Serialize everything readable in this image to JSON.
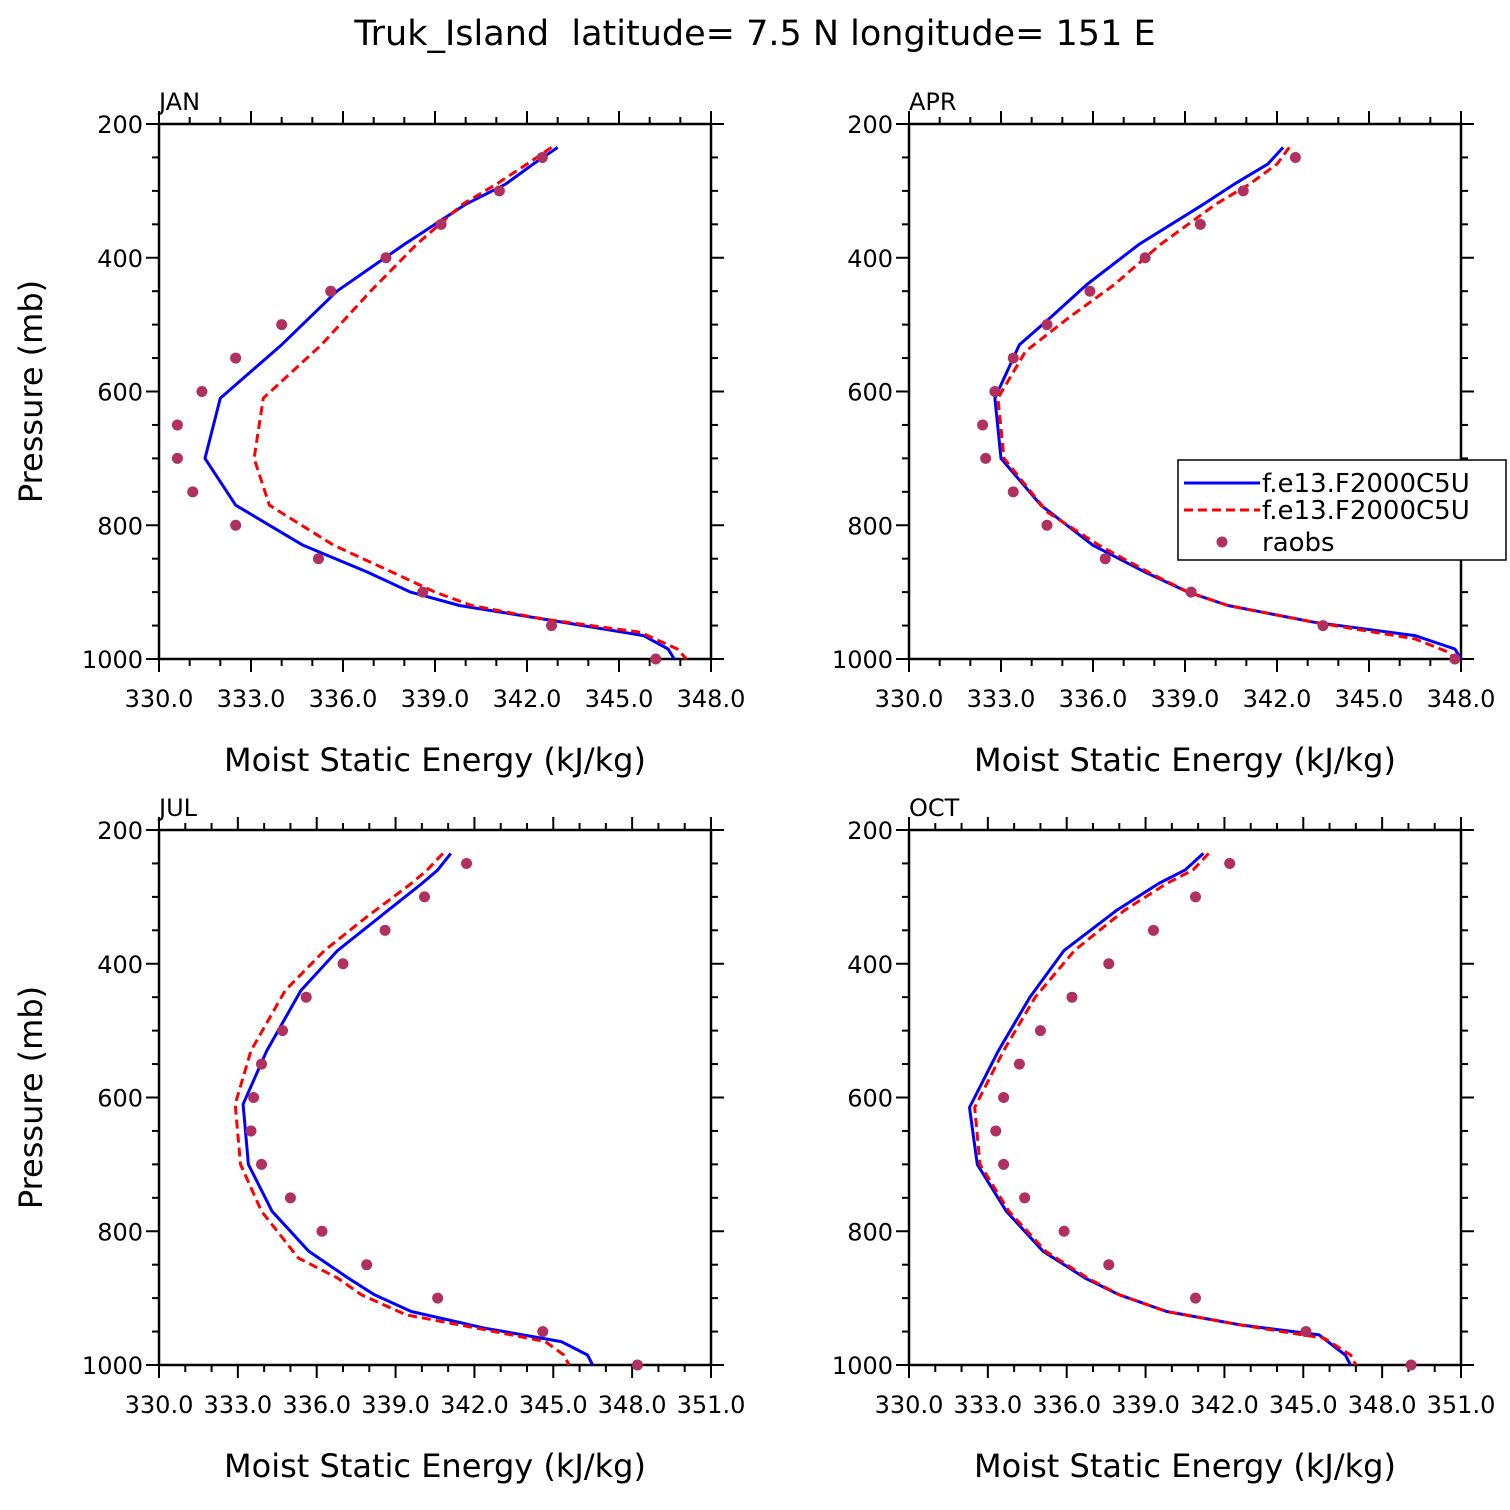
{
  "title": "Truk_Island  latitude= 7.5 N longitude= 151 E",
  "legend_labels": [
    "f.e13.F2000C5U",
    "f.e13.F2000C5U",
    "raobs"
  ],
  "colors": {
    "model1": "#0000ff",
    "model2": "#ff0000",
    "raobs": "#b03060"
  },
  "chart_data": [
    {
      "type": "line",
      "panel_label": "JAN",
      "xlabel": "Moist Static Energy (kJ/kg)",
      "ylabel": "Pressure (mb)",
      "xlim": [
        330.0,
        348.0
      ],
      "ylim": [
        1000,
        200
      ],
      "x_tick_labels": [
        "330.0",
        "333.0",
        "336.0",
        "339.0",
        "342.0",
        "345.0",
        "348.0"
      ],
      "y_tick_labels": [
        "200",
        "400",
        "600",
        "800",
        "1000"
      ],
      "series": [
        {
          "name": "f.e13.F2000C5U",
          "style": "solid",
          "points": [
            [
              343.0,
              235
            ],
            [
              342.2,
              260
            ],
            [
              341.3,
              290
            ],
            [
              340.0,
              320
            ],
            [
              338.0,
              380
            ],
            [
              335.8,
              450
            ],
            [
              334.0,
              530
            ],
            [
              332.0,
              610
            ],
            [
              331.5,
              700
            ],
            [
              332.5,
              770
            ],
            [
              334.7,
              830
            ],
            [
              336.8,
              870
            ],
            [
              338.2,
              900
            ],
            [
              339.8,
              920
            ],
            [
              342.5,
              940
            ],
            [
              345.8,
              965
            ],
            [
              346.6,
              985
            ],
            [
              346.8,
              1000
            ]
          ]
        },
        {
          "name": "f.e13.F2000C5U",
          "style": "dashed",
          "points": [
            [
              342.8,
              235
            ],
            [
              342.0,
              260
            ],
            [
              341.0,
              290
            ],
            [
              339.9,
              320
            ],
            [
              338.4,
              380
            ],
            [
              336.9,
              450
            ],
            [
              335.3,
              530
            ],
            [
              333.4,
              610
            ],
            [
              333.1,
              700
            ],
            [
              333.6,
              770
            ],
            [
              335.7,
              830
            ],
            [
              337.6,
              870
            ],
            [
              339.0,
              900
            ],
            [
              340.2,
              920
            ],
            [
              342.5,
              940
            ],
            [
              345.7,
              960
            ],
            [
              346.9,
              985
            ],
            [
              347.2,
              1000
            ]
          ]
        },
        {
          "name": "raobs",
          "style": "markers",
          "points": [
            [
              342.5,
              250
            ],
            [
              341.1,
              300
            ],
            [
              339.2,
              350
            ],
            [
              337.4,
              400
            ],
            [
              335.6,
              450
            ],
            [
              334.0,
              500
            ],
            [
              332.5,
              550
            ],
            [
              331.4,
              600
            ],
            [
              330.6,
              650
            ],
            [
              330.6,
              700
            ],
            [
              331.1,
              750
            ],
            [
              332.5,
              800
            ],
            [
              335.2,
              850
            ],
            [
              338.6,
              900
            ],
            [
              342.8,
              950
            ],
            [
              346.2,
              1000
            ]
          ]
        }
      ]
    },
    {
      "type": "line",
      "panel_label": "APR",
      "xlabel": "Moist Static Energy (kJ/kg)",
      "ylabel": "",
      "xlim": [
        330.0,
        348.0
      ],
      "ylim": [
        1000,
        200
      ],
      "x_tick_labels": [
        "330.0",
        "333.0",
        "336.0",
        "339.0",
        "342.0",
        "345.0",
        "348.0"
      ],
      "y_tick_labels": [
        "200",
        "400",
        "600",
        "800",
        "1000"
      ],
      "legend": "right",
      "series": [
        {
          "name": "f.e13.F2000C5U",
          "style": "solid",
          "points": [
            [
              342.2,
              235
            ],
            [
              341.7,
              260
            ],
            [
              340.6,
              290
            ],
            [
              339.6,
              320
            ],
            [
              337.5,
              380
            ],
            [
              335.8,
              440
            ],
            [
              334.6,
              490
            ],
            [
              333.6,
              530
            ],
            [
              332.8,
              610
            ],
            [
              333.0,
              700
            ],
            [
              334.3,
              770
            ],
            [
              336.0,
              830
            ],
            [
              337.7,
              870
            ],
            [
              339.1,
              900
            ],
            [
              340.4,
              920
            ],
            [
              343.2,
              945
            ],
            [
              346.5,
              965
            ],
            [
              347.8,
              985
            ],
            [
              348.0,
              1000
            ]
          ]
        },
        {
          "name": "f.e13.F2000C5U",
          "style": "dashed",
          "points": [
            [
              342.4,
              235
            ],
            [
              342.0,
              260
            ],
            [
              341.1,
              290
            ],
            [
              340.0,
              320
            ],
            [
              338.2,
              380
            ],
            [
              336.7,
              440
            ],
            [
              335.2,
              490
            ],
            [
              333.8,
              540
            ],
            [
              332.9,
              610
            ],
            [
              333.1,
              700
            ],
            [
              334.5,
              780
            ],
            [
              336.2,
              830
            ],
            [
              337.8,
              870
            ],
            [
              339.1,
              900
            ],
            [
              340.4,
              920
            ],
            [
              343.2,
              945
            ],
            [
              346.5,
              970
            ],
            [
              347.6,
              990
            ],
            [
              347.8,
              1000
            ]
          ]
        },
        {
          "name": "raobs",
          "style": "markers",
          "points": [
            [
              342.6,
              250
            ],
            [
              340.9,
              300
            ],
            [
              339.5,
              350
            ],
            [
              337.7,
              400
            ],
            [
              335.9,
              450
            ],
            [
              334.5,
              500
            ],
            [
              333.4,
              550
            ],
            [
              332.8,
              600
            ],
            [
              332.4,
              650
            ],
            [
              332.5,
              700
            ],
            [
              333.4,
              750
            ],
            [
              334.5,
              800
            ],
            [
              336.4,
              850
            ],
            [
              339.2,
              900
            ],
            [
              343.5,
              950
            ],
            [
              347.8,
              1000
            ]
          ]
        }
      ]
    },
    {
      "type": "line",
      "panel_label": "JUL",
      "xlabel": "Moist Static Energy (kJ/kg)",
      "ylabel": "Pressure (mb)",
      "xlim": [
        330.0,
        351.0
      ],
      "ylim": [
        1000,
        200
      ],
      "x_tick_labels": [
        "330.0",
        "333.0",
        "336.0",
        "339.0",
        "342.0",
        "345.0",
        "348.0",
        "351.0"
      ],
      "y_tick_labels": [
        "200",
        "400",
        "600",
        "800",
        "1000"
      ],
      "series": [
        {
          "name": "f.e13.F2000C5U",
          "style": "solid",
          "points": [
            [
              341.1,
              235
            ],
            [
              340.6,
              260
            ],
            [
              340.0,
              280
            ],
            [
              338.4,
              330
            ],
            [
              336.8,
              380
            ],
            [
              335.4,
              440
            ],
            [
              334.1,
              530
            ],
            [
              333.2,
              610
            ],
            [
              333.4,
              700
            ],
            [
              334.3,
              770
            ],
            [
              335.7,
              830
            ],
            [
              337.2,
              870
            ],
            [
              338.2,
              895
            ],
            [
              339.6,
              920
            ],
            [
              342.4,
              945
            ],
            [
              345.3,
              965
            ],
            [
              346.3,
              985
            ],
            [
              346.5,
              1000
            ]
          ]
        },
        {
          "name": "f.e13.F2000C5U",
          "style": "dashed",
          "points": [
            [
              340.8,
              235
            ],
            [
              340.2,
              260
            ],
            [
              339.6,
              280
            ],
            [
              337.9,
              330
            ],
            [
              336.3,
              380
            ],
            [
              334.8,
              440
            ],
            [
              333.5,
              530
            ],
            [
              332.9,
              610
            ],
            [
              333.1,
              700
            ],
            [
              333.9,
              770
            ],
            [
              335.3,
              840
            ],
            [
              336.8,
              870
            ],
            [
              337.7,
              895
            ],
            [
              339.4,
              925
            ],
            [
              342.1,
              945
            ],
            [
              344.7,
              965
            ],
            [
              345.4,
              985
            ],
            [
              345.6,
              1000
            ]
          ]
        },
        {
          "name": "raobs",
          "style": "markers",
          "points": [
            [
              341.7,
              250
            ],
            [
              340.1,
              300
            ],
            [
              338.6,
              350
            ],
            [
              337.0,
              400
            ],
            [
              335.6,
              450
            ],
            [
              334.7,
              500
            ],
            [
              333.9,
              550
            ],
            [
              333.6,
              600
            ],
            [
              333.5,
              650
            ],
            [
              333.9,
              700
            ],
            [
              335.0,
              750
            ],
            [
              336.2,
              800
            ],
            [
              337.9,
              850
            ],
            [
              340.6,
              900
            ],
            [
              344.6,
              950
            ],
            [
              348.2,
              1000
            ]
          ]
        }
      ]
    },
    {
      "type": "line",
      "panel_label": "OCT",
      "xlabel": "Moist Static Energy (kJ/kg)",
      "ylabel": "",
      "xlim": [
        330.0,
        351.0
      ],
      "ylim": [
        1000,
        200
      ],
      "x_tick_labels": [
        "330.0",
        "333.0",
        "336.0",
        "339.0",
        "342.0",
        "345.0",
        "348.0",
        "351.0"
      ],
      "y_tick_labels": [
        "200",
        "400",
        "600",
        "800",
        "1000"
      ],
      "series": [
        {
          "name": "f.e13.F2000C5U",
          "style": "solid",
          "points": [
            [
              341.2,
              235
            ],
            [
              340.5,
              260
            ],
            [
              339.5,
              280
            ],
            [
              337.9,
              320
            ],
            [
              335.9,
              380
            ],
            [
              334.6,
              450
            ],
            [
              333.4,
              530
            ],
            [
              332.3,
              615
            ],
            [
              332.6,
              700
            ],
            [
              333.7,
              770
            ],
            [
              335.1,
              830
            ],
            [
              336.7,
              870
            ],
            [
              338.0,
              895
            ],
            [
              339.8,
              920
            ],
            [
              342.6,
              940
            ],
            [
              345.6,
              955
            ],
            [
              346.6,
              985
            ],
            [
              346.8,
              1000
            ]
          ]
        },
        {
          "name": "f.e13.F2000C5U",
          "style": "dashed",
          "points": [
            [
              341.4,
              235
            ],
            [
              340.8,
              260
            ],
            [
              339.8,
              280
            ],
            [
              338.2,
              320
            ],
            [
              336.3,
              380
            ],
            [
              334.8,
              450
            ],
            [
              333.6,
              530
            ],
            [
              332.5,
              615
            ],
            [
              332.7,
              700
            ],
            [
              333.8,
              770
            ],
            [
              335.2,
              830
            ],
            [
              336.8,
              870
            ],
            [
              338.0,
              895
            ],
            [
              339.8,
              920
            ],
            [
              342.6,
              940
            ],
            [
              345.8,
              960
            ],
            [
              346.8,
              985
            ],
            [
              347.0,
              1000
            ]
          ]
        },
        {
          "name": "raobs",
          "style": "markers",
          "points": [
            [
              342.2,
              250
            ],
            [
              340.9,
              300
            ],
            [
              339.3,
              350
            ],
            [
              337.6,
              400
            ],
            [
              336.2,
              450
            ],
            [
              335.0,
              500
            ],
            [
              334.2,
              550
            ],
            [
              333.6,
              600
            ],
            [
              333.3,
              650
            ],
            [
              333.6,
              700
            ],
            [
              334.4,
              750
            ],
            [
              335.9,
              800
            ],
            [
              337.6,
              850
            ],
            [
              340.9,
              900
            ],
            [
              345.1,
              950
            ],
            [
              349.1,
              1000
            ]
          ]
        }
      ]
    }
  ]
}
